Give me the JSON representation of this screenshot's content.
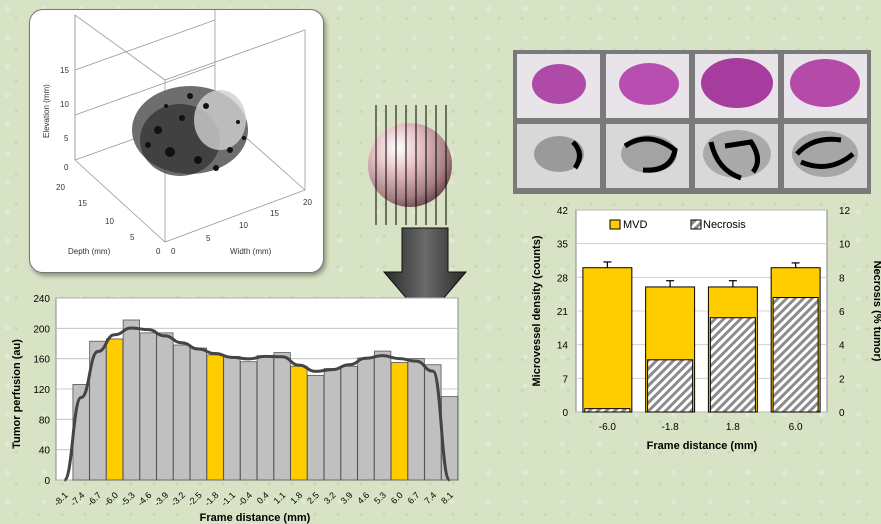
{
  "scan_plot": {
    "ylabel": "Elevation (mm)",
    "xlabel": "Width (mm)",
    "depth_label": "Depth (mm)",
    "elev_ticks": [
      "15",
      "10",
      "5",
      "0"
    ],
    "depth_ticks": [
      "20",
      "15",
      "10",
      "5",
      "0"
    ],
    "width_ticks": [
      "0",
      "5",
      "10",
      "15",
      "20"
    ]
  },
  "histology_strip": {
    "row_count": 2,
    "column_count": 4
  },
  "perfusion_chart": {
    "ylabel": "Tumor perfusion (au)",
    "xlabel": "Frame distance (mm)",
    "ylim": [
      0,
      240
    ],
    "yticks": [
      "0",
      "40",
      "80",
      "120",
      "160",
      "200",
      "240"
    ],
    "colors": {
      "bar": "#c0c0c0",
      "highlight": "#ffcc00",
      "fit": "#444444"
    }
  },
  "mvd_chart": {
    "ylabel_left": "Microvessel density (counts)",
    "ylabel_right": "Necrosis (% tumor)",
    "xlabel": "Frame distance (mm)",
    "yticks_left": [
      "0",
      "7",
      "14",
      "21",
      "28",
      "35",
      "42"
    ],
    "yticks_right": [
      "0",
      "2",
      "4",
      "6",
      "8",
      "10",
      "12"
    ],
    "legend": [
      "MVD",
      "Necrosis"
    ],
    "colors": {
      "mvd": "#ffcc00",
      "necrosis": "#ffffff"
    }
  },
  "chart_data": [
    {
      "type": "bar",
      "title": "",
      "xlabel": "Frame distance (mm)",
      "ylabel": "Tumor perfusion (au)",
      "ylim": [
        0,
        240
      ],
      "categories": [
        "-8.1",
        "-7.4",
        "-6.7",
        "-6.0",
        "-5.3",
        "-4.6",
        "-3.9",
        "-3.2",
        "-2.5",
        "-1.8",
        "-1.1",
        "-0.4",
        "0.4",
        "1.1",
        "1.8",
        "2.5",
        "3.2",
        "3.9",
        "4.6",
        "5.3",
        "6.0",
        "6.7",
        "7.4",
        "8.1"
      ],
      "values": [
        0,
        126,
        183,
        186,
        211,
        194,
        194,
        178,
        174,
        165,
        163,
        156,
        164,
        168,
        150,
        138,
        147,
        150,
        161,
        170,
        155,
        160,
        152,
        110
      ],
      "highlighted": [
        "-6.0",
        "-1.8",
        "1.8",
        "6.0"
      ],
      "fit_curve": true,
      "legend": "none"
    },
    {
      "type": "bar",
      "title": "",
      "xlabel": "Frame distance (mm)",
      "ylabel": "Microvessel density (counts)",
      "ylabel_right": "Necrosis (% tumor)",
      "ylim": [
        0,
        42
      ],
      "ylim_right": [
        0,
        12
      ],
      "categories": [
        "-6.0",
        "-1.8",
        "1.8",
        "6.0"
      ],
      "series": [
        {
          "name": "MVD",
          "axis": "left",
          "values": [
            30,
            26,
            26,
            30
          ],
          "errors": [
            1.2,
            1.3,
            1.3,
            1.0
          ]
        },
        {
          "name": "Necrosis",
          "axis": "right",
          "values": [
            0.2,
            3.1,
            5.6,
            6.8
          ]
        }
      ],
      "legend": "top"
    }
  ]
}
